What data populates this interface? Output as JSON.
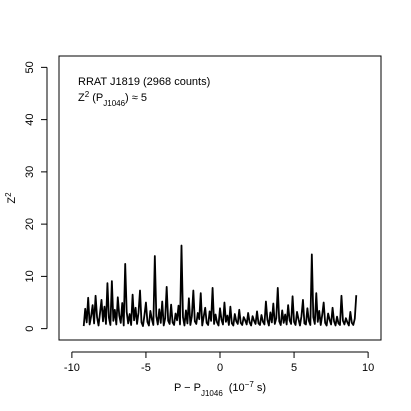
{
  "chart_data": {
    "type": "line",
    "xlabel": {
      "main": "P − P",
      "sub": "J1046",
      "unit_prefix": "(10",
      "unit_exp": "−7",
      "unit_suffix": " s)"
    },
    "ylabel": {
      "main": "Z",
      "sup": "2"
    },
    "annotations": {
      "line1": "RRAT J1819 (2968 counts)",
      "line2": {
        "main": "Z",
        "sup": "2",
        "mid": " (P",
        "sub": "J1046",
        "tail": ") ≈ 5"
      }
    },
    "xlim": [
      -10,
      10
    ],
    "ylim": [
      0,
      50
    ],
    "xticks": [
      -10,
      -5,
      0,
      5,
      10
    ],
    "yticks": [
      0,
      10,
      20,
      30,
      40,
      50
    ],
    "series": [
      {
        "color": "#000000",
        "x": [
          -9.2,
          -9.1,
          -9.0,
          -8.9,
          -8.8,
          -8.7,
          -8.6,
          -8.5,
          -8.4,
          -8.3,
          -8.2,
          -8.1,
          -8.0,
          -7.9,
          -7.8,
          -7.7,
          -7.6,
          -7.5,
          -7.4,
          -7.3,
          -7.2,
          -7.1,
          -7.0,
          -6.9,
          -6.8,
          -6.7,
          -6.6,
          -6.5,
          -6.4,
          -6.3,
          -6.2,
          -6.1,
          -6.0,
          -5.9,
          -5.8,
          -5.7,
          -5.6,
          -5.5,
          -5.4,
          -5.3,
          -5.2,
          -5.1,
          -5.0,
          -4.9,
          -4.8,
          -4.7,
          -4.6,
          -4.5,
          -4.4,
          -4.3,
          -4.2,
          -4.1,
          -4.0,
          -3.9,
          -3.8,
          -3.7,
          -3.6,
          -3.5,
          -3.4,
          -3.3,
          -3.2,
          -3.1,
          -3.0,
          -2.9,
          -2.8,
          -2.7,
          -2.6,
          -2.5,
          -2.4,
          -2.3,
          -2.2,
          -2.1,
          -2.0,
          -1.9,
          -1.8,
          -1.7,
          -1.6,
          -1.5,
          -1.4,
          -1.3,
          -1.2,
          -1.1,
          -1.0,
          -0.9,
          -0.8,
          -0.7,
          -0.6,
          -0.5,
          -0.4,
          -0.3,
          -0.2,
          -0.1,
          0.0,
          0.1,
          0.2,
          0.3,
          0.4,
          0.5,
          0.6,
          0.7,
          0.8,
          0.9,
          1.0,
          1.1,
          1.2,
          1.3,
          1.4,
          1.5,
          1.6,
          1.7,
          1.8,
          1.9,
          2.0,
          2.1,
          2.2,
          2.3,
          2.4,
          2.5,
          2.6,
          2.7,
          2.8,
          2.9,
          3.0,
          3.1,
          3.2,
          3.3,
          3.4,
          3.5,
          3.6,
          3.7,
          3.8,
          3.9,
          4.0,
          4.1,
          4.2,
          4.3,
          4.4,
          4.5,
          4.6,
          4.7,
          4.8,
          4.9,
          5.0,
          5.1,
          5.2,
          5.3,
          5.4,
          5.5,
          5.6,
          5.7,
          5.8,
          5.9,
          6.0,
          6.1,
          6.2,
          6.3,
          6.4,
          6.5,
          6.6,
          6.7,
          6.8,
          6.9,
          7.0,
          7.1,
          7.2,
          7.3,
          7.4,
          7.5,
          7.6,
          7.7,
          7.8,
          7.9,
          8.0,
          8.1,
          8.2,
          8.3,
          8.4,
          8.5,
          8.6,
          8.7,
          8.8,
          8.9,
          9.0,
          9.1,
          9.2
        ],
        "y": [
          0.5,
          3.8,
          1.2,
          5.9,
          0.8,
          2.4,
          4.5,
          1.0,
          6.3,
          2.2,
          0.6,
          3.0,
          5.5,
          1.4,
          4.2,
          0.9,
          8.7,
          2.1,
          0.7,
          9.1,
          1.5,
          3.6,
          0.8,
          6.0,
          2.5,
          1.1,
          4.9,
          0.6,
          12.4,
          3.2,
          1.0,
          2.8,
          0.7,
          6.5,
          1.6,
          4.0,
          0.9,
          3.1,
          7.3,
          1.2,
          0.5,
          2.6,
          5.0,
          1.3,
          0.6,
          3.4,
          1.8,
          0.7,
          13.9,
          2.4,
          0.8,
          3.7,
          1.1,
          5.2,
          0.6,
          2.0,
          8.0,
          1.5,
          0.9,
          4.6,
          1.2,
          0.7,
          2.9,
          1.6,
          4.4,
          0.8,
          15.9,
          2.2,
          0.6,
          3.5,
          1.0,
          5.8,
          0.7,
          2.4,
          7.3,
          1.4,
          0.9,
          3.0,
          1.8,
          6.8,
          0.6,
          2.3,
          4.0,
          1.1,
          0.7,
          3.3,
          1.5,
          7.8,
          0.9,
          2.7,
          1.2,
          0.6,
          3.9,
          1.7,
          0.8,
          5.0,
          1.3,
          2.5,
          0.7,
          4.2,
          1.0,
          0.6,
          2.8,
          1.4,
          0.9,
          3.6,
          1.1,
          0.7,
          2.2,
          1.6,
          0.8,
          3.0,
          1.2,
          0.6,
          2.4,
          1.5,
          0.9,
          3.3,
          1.0,
          0.7,
          2.6,
          1.3,
          0.8,
          5.2,
          1.7,
          0.6,
          3.1,
          1.2,
          4.8,
          0.9,
          2.0,
          7.8,
          1.4,
          0.7,
          3.5,
          1.1,
          2.7,
          0.8,
          4.5,
          1.6,
          0.9,
          6.2,
          1.3,
          0.7,
          3.2,
          1.8,
          0.6,
          2.4,
          5.5,
          1.0,
          0.8,
          3.9,
          1.5,
          0.7,
          14.2,
          2.2,
          0.9,
          6.8,
          1.3,
          3.4,
          0.7,
          2.6,
          5.0,
          1.1,
          0.6,
          2.9,
          1.7,
          0.8,
          4.0,
          1.4,
          0.6,
          2.3,
          1.0,
          0.7,
          6.3,
          1.5,
          0.8,
          2.0,
          1.2,
          0.6,
          3.2,
          1.1,
          0.7,
          1.9,
          6.4
        ]
      }
    ]
  }
}
